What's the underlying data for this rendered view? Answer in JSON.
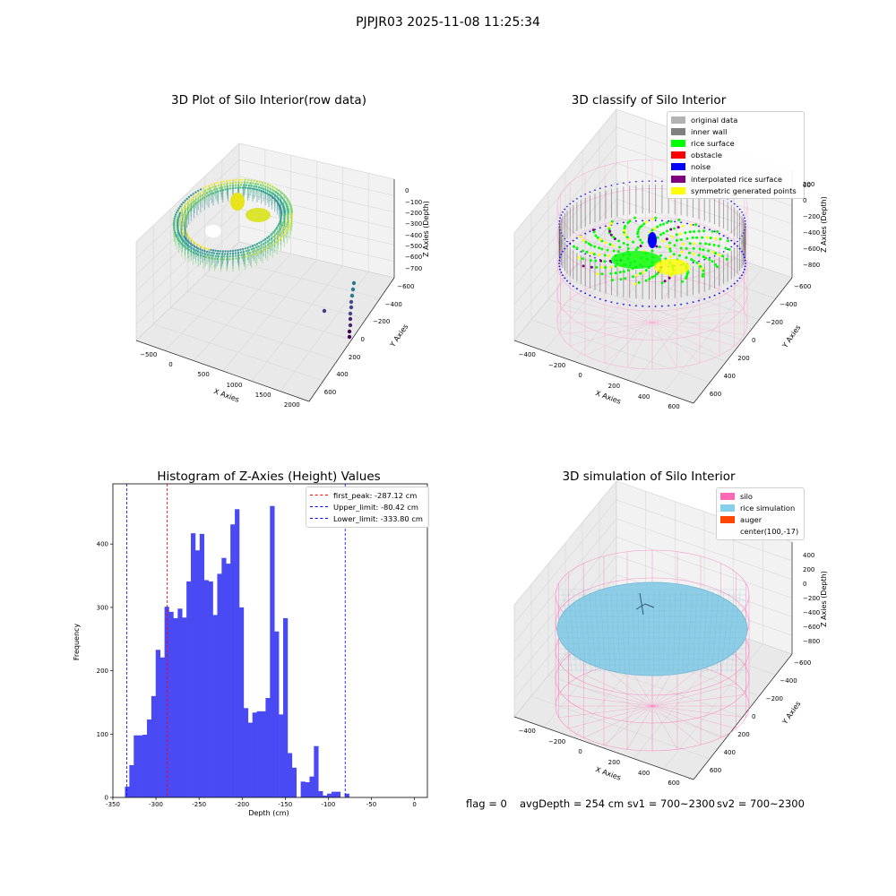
{
  "suptitle": "PJPJR03 2025-11-08 11:25:34",
  "panel1": {
    "title": "3D Plot of Silo Interior(row data)",
    "xlabel": "X Axies",
    "ylabel": "Y Axies",
    "zlabel": "Z Axies (Depth)",
    "xticks": [
      "−500",
      "0",
      "500",
      "1000",
      "1500",
      "2000"
    ],
    "yticks": [
      "600",
      "400",
      "200",
      "0",
      "−200",
      "−400",
      "−600"
    ],
    "zticks": [
      "0",
      "−100",
      "−200",
      "−300",
      "−400",
      "−500",
      "−600",
      "−700"
    ]
  },
  "panel2": {
    "title": "3D classify of Silo Interior",
    "xlabel": "X Axies",
    "ylabel": "Y Axies",
    "zlabel": "Z Axies (Depth)",
    "xticks": [
      "−400",
      "−200",
      "0",
      "200",
      "400",
      "600"
    ],
    "yticks": [
      "600",
      "400",
      "200",
      "0",
      "−200",
      "−400",
      "−600"
    ],
    "zticks": [
      "200",
      "0",
      "−200",
      "−400",
      "−600",
      "−800"
    ],
    "zticks_partial": "00",
    "legend": [
      {
        "label": "original data",
        "color": "#b3b3b3"
      },
      {
        "label": "inner wall",
        "color": "#808080"
      },
      {
        "label": "rice surface",
        "color": "#00ff00"
      },
      {
        "label": "obstacle",
        "color": "#ff0000"
      },
      {
        "label": "noise",
        "color": "#0000ff"
      },
      {
        "label": "interpolated rice surface",
        "color": "#800080"
      },
      {
        "label": "symmetric generated points",
        "color": "#ffff00"
      }
    ]
  },
  "panel3": {
    "title": "3D simulation of Silo Interior",
    "xlabel": "X Axies",
    "ylabel": "Y Axies",
    "zlabel": "Z Axies (Depth)",
    "xticks": [
      "−400",
      "−200",
      "0",
      "200",
      "400",
      "600"
    ],
    "yticks": [
      "600",
      "400",
      "200",
      "0",
      "−200",
      "−400",
      "−600"
    ],
    "zticks": [
      "400",
      "200",
      "0",
      "−200",
      "−400",
      "−600",
      "−800"
    ],
    "legend": [
      {
        "label": "silo",
        "color": "#ff69b4"
      },
      {
        "label": "rice simulation",
        "color": "#87ceeb"
      },
      {
        "label": "auger",
        "color": "#ff4500"
      },
      {
        "label": "center(100,-17)",
        "color": null
      }
    ]
  },
  "footer": {
    "flag": "flag = 0",
    "avg": "avgDepth = 254 cm",
    "sv1": "sv1 = 700~2300",
    "sv2": "sv2 = 700~2300"
  },
  "chart_data": {
    "type": "bar",
    "title": "Histogram of Z-Axies (Height) Values",
    "xlabel": "Depth (cm)",
    "ylabel": "Frequency",
    "xlim": [
      -350,
      15
    ],
    "ylim": [
      0,
      495
    ],
    "bar_color": "#4a4af5",
    "bin_width": 5.1,
    "bins_start": [
      -336,
      -330.9,
      -325.8,
      -320.7,
      -315.6,
      -310.5,
      -305.4,
      -300.3,
      -295.2,
      -290.1,
      -285,
      -279.9,
      -274.8,
      -269.7,
      -264.6,
      -259.5,
      -254.4,
      -249.3,
      -244.2,
      -239.1,
      -234,
      -228.9,
      -223.8,
      -218.7,
      -213.6,
      -208.5,
      -203.4,
      -198.3,
      -193.2,
      -188.1,
      -183,
      -177.9,
      -172.8,
      -167.7,
      -162.6,
      -157.5,
      -152.4,
      -147.3,
      -142.2,
      -137.1,
      -132,
      -126.9,
      -121.8,
      -116.7,
      -111.6,
      -106.5,
      -101.4,
      -96.3,
      -91.2,
      -86.1,
      -81,
      -75.9,
      -70.8,
      -65.7,
      -60.6,
      -55.5,
      -50.4,
      -45.3,
      -40.2,
      -35.1,
      -30,
      -24.9,
      -19.8,
      -14.7,
      -9.6,
      -4.5
    ],
    "values": [
      17,
      51,
      98,
      98,
      99,
      123,
      160,
      233,
      221,
      301,
      293,
      283,
      298,
      284,
      341,
      417,
      390,
      416,
      343,
      341,
      288,
      353,
      378,
      369,
      431,
      455,
      300,
      141,
      118,
      134,
      136,
      136,
      157,
      460,
      262,
      131,
      283,
      70,
      47,
      0,
      25,
      24,
      33,
      81,
      10,
      3,
      6,
      9,
      9,
      0,
      6,
      0,
      0,
      0,
      0,
      0,
      0,
      0,
      0,
      0,
      0,
      0,
      0,
      0,
      0,
      0
    ],
    "xticks": [
      -350,
      -300,
      -250,
      -200,
      -150,
      -100,
      -50,
      0
    ],
    "yticks": [
      0,
      100,
      200,
      300,
      400
    ],
    "vlines": [
      {
        "label": "first_peak: -287.12 cm",
        "x": -287.12,
        "color": "#ff0000"
      },
      {
        "label": "Upper_limit: -80.42 cm",
        "x": -80.42,
        "color": "#0000ff"
      },
      {
        "label": "Lower_limit: -333.80 cm",
        "x": -333.8,
        "color": "#0000ff"
      }
    ],
    "legend_loc": "upper right"
  }
}
